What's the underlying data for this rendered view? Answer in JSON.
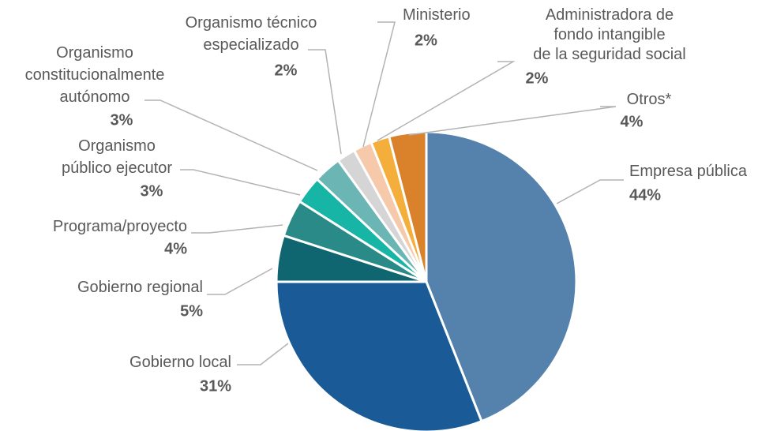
{
  "chart_data": {
    "type": "pie",
    "categories": [
      [
        "Empresa pública"
      ],
      [
        "Gobierno local"
      ],
      [
        "Gobierno regional"
      ],
      [
        "Programa/proyecto"
      ],
      [
        "Organismo",
        "público ejecutor"
      ],
      [
        "Organismo",
        "constitucionalmente",
        "autónomo"
      ],
      [
        "Organismo técnico",
        "especializado"
      ],
      [
        "Ministerio"
      ],
      [
        "Administradora de",
        "fondo intangible",
        "de la seguridad social"
      ],
      [
        "Otros*"
      ]
    ],
    "values": [
      44,
      31,
      5,
      4,
      3,
      3,
      2,
      2,
      2,
      4
    ],
    "value_labels": [
      "44%",
      "31%",
      "5%",
      "4%",
      "3%",
      "3%",
      "2%",
      "2%",
      "2%",
      "4%"
    ],
    "colors": [
      "#5482ad",
      "#1a5a96",
      "#0f6670",
      "#2a8a87",
      "#17b5a5",
      "#6bb5b5",
      "#d5d5d5",
      "#f5c9aa",
      "#f4ae3c",
      "#d9822b"
    ]
  }
}
